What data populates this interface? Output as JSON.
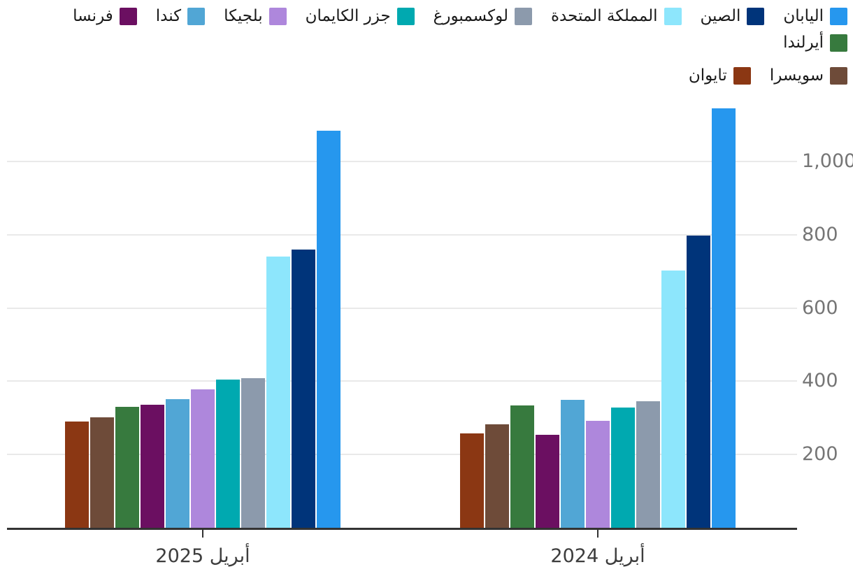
{
  "chart_data": {
    "type": "bar",
    "title": "",
    "categories": [
      "أبريل 2025",
      "أبريل 2024"
    ],
    "series": [
      {
        "name": "اليابان",
        "color": "#2697EE",
        "values": [
          1084,
          1145
        ]
      },
      {
        "name": "الصين",
        "color": "#00347A",
        "values": [
          760,
          798
        ]
      },
      {
        "name": "المملكة المتحدة",
        "color": "#8DE6FC",
        "values": [
          740,
          702
        ]
      },
      {
        "name": "لوكسمبورغ",
        "color": "#8C9AAC",
        "values": [
          409,
          346
        ]
      },
      {
        "name": "جزر الكايمان",
        "color": "#00A9B0",
        "values": [
          404,
          328
        ]
      },
      {
        "name": "بلجيكا",
        "color": "#AE87DC",
        "values": [
          378,
          292
        ]
      },
      {
        "name": "كندا",
        "color": "#51A6D5",
        "values": [
          351,
          350
        ]
      },
      {
        "name": "فرنسا",
        "color": "#6B0F61",
        "values": [
          336,
          254
        ]
      },
      {
        "name": "أيرلندا",
        "color": "#377A3E",
        "values": [
          330,
          334
        ]
      },
      {
        "name": "سويسرا",
        "color": "#6E4B39",
        "values": [
          302,
          282
        ]
      },
      {
        "name": "تايوان",
        "color": "#8B3713",
        "values": [
          290,
          258
        ]
      }
    ],
    "xlabel": "",
    "ylabel": "",
    "ylim": [
      0,
      1150
    ],
    "y_ticks": [
      200,
      400,
      600,
      800,
      1000
    ],
    "y_tick_labels": [
      "200",
      "400",
      "600",
      "800",
      "1,000"
    ],
    "grid": true,
    "legend_position": "top",
    "rtl": true,
    "legend_rows": [
      9,
      2
    ],
    "colors": {
      "axis": "#333333",
      "grid": "#e9e9e9",
      "y_tick_text": "#757575",
      "x_tick_text": "#3d3d3d",
      "legend_text": "#1a1a1a",
      "background": "#ffffff"
    }
  }
}
